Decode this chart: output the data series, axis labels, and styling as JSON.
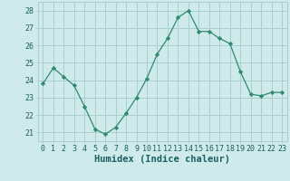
{
  "x": [
    0,
    1,
    2,
    3,
    4,
    5,
    6,
    7,
    8,
    9,
    10,
    11,
    12,
    13,
    14,
    15,
    16,
    17,
    18,
    19,
    20,
    21,
    22,
    23
  ],
  "y": [
    23.8,
    24.7,
    24.2,
    23.7,
    22.5,
    21.2,
    20.9,
    21.3,
    22.1,
    23.0,
    24.1,
    25.5,
    26.4,
    27.6,
    28.0,
    26.8,
    26.8,
    26.4,
    26.1,
    24.5,
    23.2,
    23.1,
    23.3,
    23.3
  ],
  "xlabel": "Humidex (Indice chaleur)",
  "ylim": [
    20.5,
    28.5
  ],
  "xlim": [
    -0.5,
    23.5
  ],
  "yticks": [
    21,
    22,
    23,
    24,
    25,
    26,
    27,
    28
  ],
  "xticks": [
    0,
    1,
    2,
    3,
    4,
    5,
    6,
    7,
    8,
    9,
    10,
    11,
    12,
    13,
    14,
    15,
    16,
    17,
    18,
    19,
    20,
    21,
    22,
    23
  ],
  "xtick_labels": [
    "0",
    "1",
    "2",
    "3",
    "4",
    "5",
    "6",
    "7",
    "8",
    "9",
    "10",
    "11",
    "12",
    "13",
    "14",
    "15",
    "16",
    "17",
    "18",
    "19",
    "20",
    "21",
    "22",
    "23"
  ],
  "line_color": "#2e8b72",
  "marker": "D",
  "marker_size": 2.2,
  "bg_color": "#ceeaea",
  "grid_color": "#aacece",
  "label_color": "#1a6060",
  "tick_fontsize": 6.0,
  "xlabel_fontsize": 7.5
}
